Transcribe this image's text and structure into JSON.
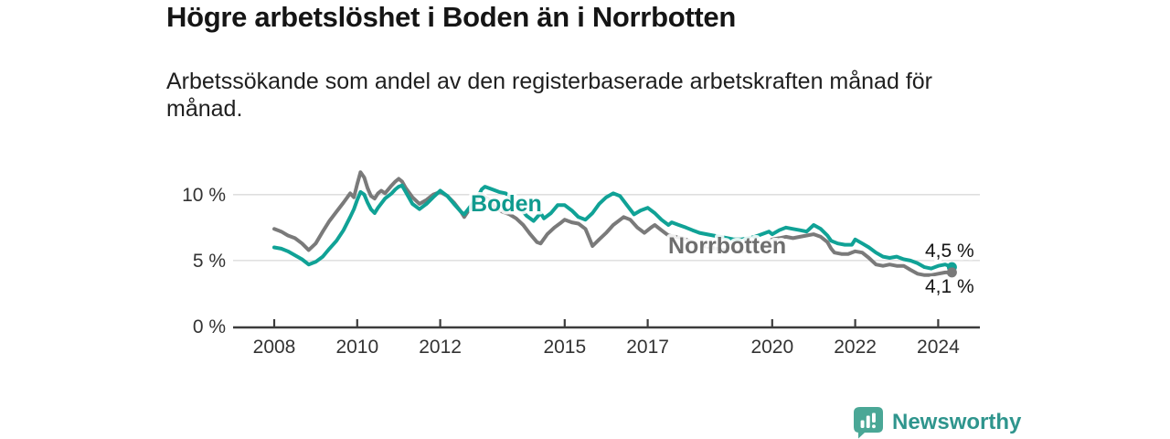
{
  "header": {
    "title": "Högre arbetslöshet i Boden än i Norrbotten",
    "subtitle": "Arbetssökande som andel av den registerbaserade arbetskraften månad för månad."
  },
  "chart_data": {
    "type": "line",
    "title": "Högre arbetslöshet i Boden än i Norrbotten",
    "subtitle": "Arbetssökande som andel av den registerbaserade arbetskraften månad för månad.",
    "unit": "%",
    "grid": "horizontal",
    "x_axis": {
      "ticks": [
        2008,
        2010,
        2012,
        2015,
        2017,
        2020,
        2022,
        2024
      ],
      "range": [
        2007,
        2025
      ]
    },
    "y_axis": {
      "range": [
        0,
        12.5
      ],
      "ticks": [
        {
          "value": 10,
          "label": "10 %"
        },
        {
          "value": 5,
          "label": "5 %"
        },
        {
          "value": 0,
          "label": "0 %"
        }
      ]
    },
    "colors": {
      "boden": "#10a296",
      "norrbotten": "#7a7a7a",
      "axis": "#3c3c3c",
      "grid": "#d9d9d9"
    },
    "series": [
      {
        "name": "Boden",
        "color": "#10a296",
        "label_color": "#0f9a8e",
        "end_label": "4,5 %",
        "end_value": 4.5,
        "points": [
          [
            2008.0,
            6.0
          ],
          [
            2008.17,
            5.9
          ],
          [
            2008.33,
            5.7
          ],
          [
            2008.5,
            5.4
          ],
          [
            2008.67,
            5.1
          ],
          [
            2008.83,
            4.7
          ],
          [
            2009.0,
            4.9
          ],
          [
            2009.17,
            5.3
          ],
          [
            2009.33,
            5.9
          ],
          [
            2009.5,
            6.5
          ],
          [
            2009.67,
            7.3
          ],
          [
            2009.83,
            8.3
          ],
          [
            2009.92,
            8.9
          ],
          [
            2010.0,
            9.6
          ],
          [
            2010.08,
            10.2
          ],
          [
            2010.17,
            10.0
          ],
          [
            2010.25,
            9.4
          ],
          [
            2010.33,
            8.9
          ],
          [
            2010.42,
            8.6
          ],
          [
            2010.5,
            9.0
          ],
          [
            2010.67,
            9.7
          ],
          [
            2010.83,
            10.1
          ],
          [
            2010.92,
            10.4
          ],
          [
            2011.0,
            10.6
          ],
          [
            2011.08,
            10.7
          ],
          [
            2011.17,
            10.2
          ],
          [
            2011.33,
            9.3
          ],
          [
            2011.5,
            8.9
          ],
          [
            2011.67,
            9.3
          ],
          [
            2011.83,
            9.8
          ],
          [
            2012.0,
            10.3
          ],
          [
            2012.17,
            9.9
          ],
          [
            2012.33,
            9.3
          ],
          [
            2012.5,
            8.7
          ],
          [
            2012.58,
            8.5
          ],
          [
            2012.75,
            9.2
          ],
          [
            2012.92,
            9.9
          ],
          [
            2013.0,
            10.4
          ],
          [
            2013.08,
            10.6
          ],
          [
            2013.25,
            10.4
          ],
          [
            2013.42,
            10.2
          ],
          [
            2013.58,
            10.1
          ],
          [
            2013.75,
            9.6
          ],
          [
            2013.92,
            9.0
          ],
          [
            2014.08,
            8.4
          ],
          [
            2014.25,
            8.0
          ],
          [
            2014.42,
            8.6
          ],
          [
            2014.5,
            8.2
          ],
          [
            2014.67,
            8.6
          ],
          [
            2014.83,
            9.2
          ],
          [
            2015.0,
            9.2
          ],
          [
            2015.17,
            8.8
          ],
          [
            2015.33,
            8.3
          ],
          [
            2015.5,
            8.1
          ],
          [
            2015.67,
            8.6
          ],
          [
            2015.83,
            9.3
          ],
          [
            2016.0,
            9.8
          ],
          [
            2016.17,
            10.1
          ],
          [
            2016.33,
            9.9
          ],
          [
            2016.5,
            9.2
          ],
          [
            2016.67,
            8.5
          ],
          [
            2016.83,
            8.8
          ],
          [
            2017.0,
            9.0
          ],
          [
            2017.17,
            8.6
          ],
          [
            2017.33,
            8.1
          ],
          [
            2017.5,
            7.7
          ],
          [
            2017.58,
            7.9
          ],
          [
            2017.75,
            7.7
          ],
          [
            2017.92,
            7.5
          ],
          [
            2018.08,
            7.3
          ],
          [
            2018.25,
            7.1
          ],
          [
            2018.42,
            7.0
          ],
          [
            2018.58,
            6.9
          ],
          [
            2018.75,
            6.8
          ],
          [
            2018.92,
            6.7
          ],
          [
            2019.08,
            6.6
          ],
          [
            2019.25,
            6.6
          ],
          [
            2019.42,
            6.7
          ],
          [
            2019.58,
            6.8
          ],
          [
            2019.75,
            7.0
          ],
          [
            2019.92,
            7.2
          ],
          [
            2020.0,
            7.0
          ],
          [
            2020.17,
            7.3
          ],
          [
            2020.33,
            7.5
          ],
          [
            2020.5,
            7.4
          ],
          [
            2020.67,
            7.3
          ],
          [
            2020.83,
            7.2
          ],
          [
            2021.0,
            7.7
          ],
          [
            2021.17,
            7.4
          ],
          [
            2021.33,
            6.9
          ],
          [
            2021.42,
            6.5
          ],
          [
            2021.58,
            6.3
          ],
          [
            2021.75,
            6.2
          ],
          [
            2021.92,
            6.2
          ],
          [
            2022.0,
            6.6
          ],
          [
            2022.17,
            6.3
          ],
          [
            2022.33,
            6.0
          ],
          [
            2022.5,
            5.6
          ],
          [
            2022.67,
            5.3
          ],
          [
            2022.83,
            5.2
          ],
          [
            2023.0,
            5.3
          ],
          [
            2023.17,
            5.1
          ],
          [
            2023.33,
            5.0
          ],
          [
            2023.5,
            4.8
          ],
          [
            2023.67,
            4.5
          ],
          [
            2023.83,
            4.4
          ],
          [
            2024.0,
            4.6
          ],
          [
            2024.17,
            4.7
          ],
          [
            2024.33,
            4.5
          ]
        ]
      },
      {
        "name": "Norrbotten",
        "color": "#7a7a7a",
        "label_color": "#6e6e6e",
        "end_label": "4,1 %",
        "end_value": 4.1,
        "points": [
          [
            2008.0,
            7.4
          ],
          [
            2008.17,
            7.2
          ],
          [
            2008.33,
            6.9
          ],
          [
            2008.5,
            6.7
          ],
          [
            2008.67,
            6.3
          ],
          [
            2008.83,
            5.8
          ],
          [
            2009.0,
            6.3
          ],
          [
            2009.17,
            7.2
          ],
          [
            2009.33,
            8.0
          ],
          [
            2009.5,
            8.7
          ],
          [
            2009.67,
            9.4
          ],
          [
            2009.83,
            10.1
          ],
          [
            2009.92,
            9.8
          ],
          [
            2010.0,
            10.8
          ],
          [
            2010.08,
            11.7
          ],
          [
            2010.17,
            11.3
          ],
          [
            2010.25,
            10.5
          ],
          [
            2010.33,
            9.9
          ],
          [
            2010.42,
            9.7
          ],
          [
            2010.5,
            10.1
          ],
          [
            2010.58,
            10.3
          ],
          [
            2010.67,
            10.1
          ],
          [
            2010.83,
            10.7
          ],
          [
            2010.92,
            11.0
          ],
          [
            2011.0,
            11.2
          ],
          [
            2011.08,
            11.0
          ],
          [
            2011.17,
            10.5
          ],
          [
            2011.33,
            9.8
          ],
          [
            2011.5,
            9.3
          ],
          [
            2011.67,
            9.6
          ],
          [
            2011.83,
            10.0
          ],
          [
            2012.0,
            10.2
          ],
          [
            2012.17,
            9.9
          ],
          [
            2012.33,
            9.4
          ],
          [
            2012.5,
            8.7
          ],
          [
            2012.58,
            8.3
          ],
          [
            2012.75,
            9.1
          ],
          [
            2012.92,
            9.8
          ],
          [
            2013.0,
            10.0
          ],
          [
            2013.17,
            9.6
          ],
          [
            2013.33,
            9.0
          ],
          [
            2013.5,
            8.7
          ],
          [
            2013.67,
            8.5
          ],
          [
            2013.83,
            8.2
          ],
          [
            2014.0,
            7.7
          ],
          [
            2014.17,
            7.0
          ],
          [
            2014.33,
            6.4
          ],
          [
            2014.42,
            6.3
          ],
          [
            2014.58,
            7.0
          ],
          [
            2014.75,
            7.5
          ],
          [
            2014.92,
            7.9
          ],
          [
            2015.0,
            8.1
          ],
          [
            2015.17,
            7.9
          ],
          [
            2015.33,
            7.8
          ],
          [
            2015.5,
            7.4
          ],
          [
            2015.58,
            6.8
          ],
          [
            2015.67,
            6.1
          ],
          [
            2015.83,
            6.6
          ],
          [
            2016.0,
            7.1
          ],
          [
            2016.17,
            7.7
          ],
          [
            2016.42,
            8.3
          ],
          [
            2016.58,
            8.1
          ],
          [
            2016.75,
            7.5
          ],
          [
            2016.92,
            7.1
          ],
          [
            2017.08,
            7.5
          ],
          [
            2017.17,
            7.7
          ],
          [
            2017.33,
            7.3
          ],
          [
            2017.5,
            6.9
          ],
          [
            2017.67,
            6.8
          ],
          [
            2017.83,
            6.7
          ],
          [
            2018.0,
            6.5
          ],
          [
            2018.17,
            6.3
          ],
          [
            2018.33,
            6.1
          ],
          [
            2018.5,
            6.0
          ],
          [
            2018.67,
            5.9
          ],
          [
            2018.83,
            5.8
          ],
          [
            2019.0,
            5.8
          ],
          [
            2019.17,
            5.7
          ],
          [
            2019.33,
            5.7
          ],
          [
            2019.5,
            5.8
          ],
          [
            2019.67,
            6.0
          ],
          [
            2019.83,
            6.3
          ],
          [
            2020.0,
            6.6
          ],
          [
            2020.17,
            6.7
          ],
          [
            2020.33,
            6.8
          ],
          [
            2020.5,
            6.7
          ],
          [
            2020.67,
            6.8
          ],
          [
            2020.83,
            6.9
          ],
          [
            2021.0,
            7.0
          ],
          [
            2021.17,
            6.8
          ],
          [
            2021.33,
            6.4
          ],
          [
            2021.42,
            5.9
          ],
          [
            2021.5,
            5.6
          ],
          [
            2021.67,
            5.5
          ],
          [
            2021.83,
            5.5
          ],
          [
            2022.0,
            5.7
          ],
          [
            2022.17,
            5.6
          ],
          [
            2022.33,
            5.2
          ],
          [
            2022.5,
            4.7
          ],
          [
            2022.67,
            4.6
          ],
          [
            2022.83,
            4.7
          ],
          [
            2023.0,
            4.6
          ],
          [
            2023.17,
            4.6
          ],
          [
            2023.33,
            4.3
          ],
          [
            2023.5,
            4.0
          ],
          [
            2023.67,
            3.9
          ],
          [
            2023.83,
            3.9
          ],
          [
            2024.0,
            4.0
          ],
          [
            2024.17,
            4.1
          ],
          [
            2024.33,
            4.1
          ]
        ]
      }
    ]
  },
  "footer": {
    "brand": "Newsworthy",
    "logo_color": "#4aa796",
    "brand_text_color": "#2f958d"
  }
}
